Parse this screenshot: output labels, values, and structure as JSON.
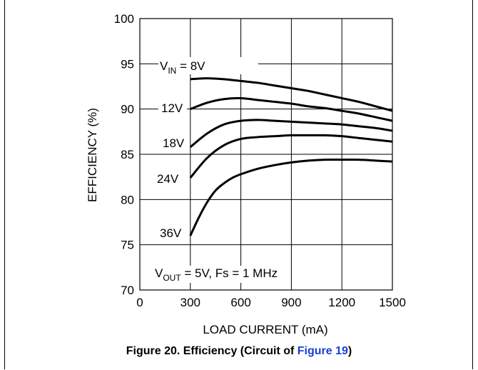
{
  "chart_data": {
    "type": "line",
    "title": "",
    "xlabel": "LOAD CURRENT (mA)",
    "ylabel": "EFFICIENCY (%)",
    "xlim": [
      0,
      1500
    ],
    "ylim": [
      70,
      100
    ],
    "xticks": [
      0,
      300,
      600,
      900,
      1200,
      1500
    ],
    "yticks": [
      70,
      75,
      80,
      85,
      90,
      95,
      100
    ],
    "grid": true,
    "series": [
      {
        "name": "VIN = 8V",
        "x": [
          300,
          400,
          500,
          600,
          700,
          800,
          900,
          1000,
          1100,
          1200,
          1300,
          1400,
          1500
        ],
        "y": [
          93.3,
          93.4,
          93.3,
          93.1,
          92.9,
          92.6,
          92.3,
          92.0,
          91.6,
          91.2,
          90.8,
          90.3,
          89.8
        ]
      },
      {
        "name": "12V",
        "x": [
          300,
          400,
          500,
          600,
          700,
          800,
          900,
          1000,
          1100,
          1200,
          1300,
          1400,
          1500
        ],
        "y": [
          90.0,
          90.7,
          91.1,
          91.2,
          91.0,
          90.8,
          90.6,
          90.3,
          90.1,
          89.8,
          89.5,
          89.1,
          88.7
        ]
      },
      {
        "name": "18V",
        "x": [
          300,
          400,
          500,
          600,
          700,
          800,
          900,
          1000,
          1100,
          1200,
          1300,
          1400,
          1500
        ],
        "y": [
          85.8,
          87.3,
          88.3,
          88.7,
          88.8,
          88.7,
          88.6,
          88.5,
          88.4,
          88.3,
          88.1,
          87.9,
          87.6
        ]
      },
      {
        "name": "24V",
        "x": [
          300,
          400,
          500,
          600,
          700,
          800,
          900,
          1000,
          1100,
          1200,
          1300,
          1400,
          1500
        ],
        "y": [
          82.4,
          84.6,
          86.0,
          86.7,
          86.9,
          87.0,
          87.1,
          87.1,
          87.1,
          87.0,
          86.8,
          86.6,
          86.4
        ]
      },
      {
        "name": "36V",
        "x": [
          300,
          350,
          400,
          450,
          500,
          550,
          600,
          700,
          800,
          900,
          1000,
          1100,
          1200,
          1300,
          1400,
          1500
        ],
        "y": [
          76.0,
          78.0,
          79.7,
          81.0,
          81.8,
          82.4,
          82.8,
          83.4,
          83.8,
          84.1,
          84.3,
          84.4,
          84.4,
          84.4,
          84.3,
          84.2
        ]
      }
    ],
    "annotations": {
      "vin_main": "V",
      "vin_sub": "IN",
      "vin_rest": " = 8V",
      "v12": "12V",
      "v18": "18V",
      "v24": "24V",
      "v36": "36V",
      "cond_main": "V",
      "cond_sub": "OUT",
      "cond_rest": " = 5V, Fs = 1 MHz"
    }
  },
  "caption": {
    "prefix": "Figure 20. Efficiency (Circuit of ",
    "link": "Figure 19",
    "suffix": ")"
  },
  "colors": {
    "link": "#1a3fd6",
    "line": "#000000"
  }
}
